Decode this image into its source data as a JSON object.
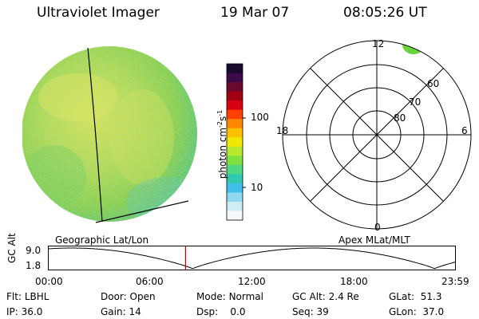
{
  "header": {
    "title": "Ultraviolet Imager",
    "date": "19 Mar 07",
    "time": "08:05:26 UT"
  },
  "colorbar": {
    "unit_main": "photon cm",
    "unit_exp1": "-2",
    "unit_mid": "s",
    "unit_exp2": "-1",
    "ticks": [
      "100",
      "10"
    ],
    "colors": [
      "#1a0a2e",
      "#3a0a4a",
      "#6a0830",
      "#a00010",
      "#d80010",
      "#ff4000",
      "#ff8800",
      "#ffc000",
      "#f0e800",
      "#b8e830",
      "#80e040",
      "#50d880",
      "#30c8b0",
      "#40c0e8",
      "#90d8f0",
      "#d0ecf4",
      "#f4f8fa"
    ]
  },
  "earth_view": {
    "label": "Geographic Lat/Lon"
  },
  "polar": {
    "label": "Apex  MLat/MLT",
    "mlt_labels": [
      "12",
      "18",
      "6",
      "0"
    ],
    "lat_labels": [
      "60",
      "70",
      "80"
    ]
  },
  "timeline": {
    "ylabel": "GC Alt",
    "ytick_top": "9.0",
    "ytick_bottom": "1.8",
    "xticks": [
      "00:00",
      "06:00",
      "12:00",
      "18:00",
      "23:59"
    ],
    "cursor_time": "08:05"
  },
  "status": {
    "flt_label": "Flt:",
    "flt_value": "LBHL",
    "door_label": "Door:",
    "door_value": "Open",
    "mode_label": "Mode:",
    "mode_value": "Normal",
    "gcalt_label": "GC Alt:",
    "gcalt_value": "2.4 Re",
    "glat_label": "GLat:",
    "glat_value": "51.3",
    "ip_label": "IP:",
    "ip_value": "36.0",
    "gain_label": "Gain:",
    "gain_value": "14",
    "dsp_label": "Dsp:",
    "dsp_value": "0.0",
    "seq_label": "Seq:",
    "seq_value": "39",
    "glon_label": "GLon:",
    "glon_value": "37.0"
  },
  "colors": {
    "earth_base": "#a8d860",
    "earth_green": "#90d048",
    "earth_yellow": "#d8e458",
    "earth_cyan": "#58c8a8",
    "cursor": "#cc0000",
    "polar_blob": "#6ad23a"
  }
}
